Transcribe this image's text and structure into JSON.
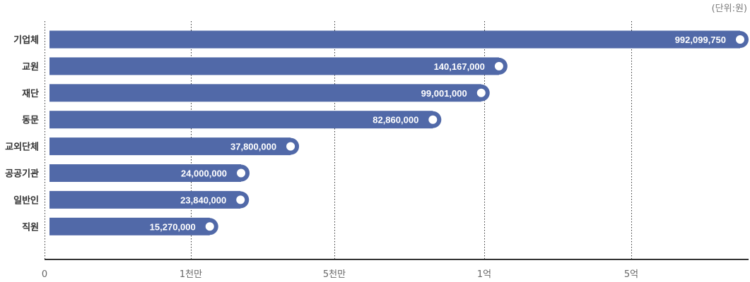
{
  "unit_note": "(단위:원)",
  "colors": {
    "bar": "#5169a8",
    "bar_outline": "#4a5f9c",
    "marker_fill": "#ffffff",
    "grid": "#333333",
    "axis": "#333333",
    "category_text": "#333333",
    "tick_text": "#666666",
    "value_text": "#ffffff"
  },
  "chart_data": {
    "type": "bar",
    "orientation": "horizontal",
    "categories": [
      "기업체",
      "교원",
      "재단",
      "동문",
      "교외단체",
      "공공기관",
      "일반인",
      "직원"
    ],
    "values": [
      992099750,
      140167000,
      99001000,
      82860000,
      37800000,
      24000000,
      23840000,
      15270000
    ],
    "value_labels": [
      "992,099,750",
      "140,167,000",
      "99,001,000",
      "82,860,000",
      "37,800,000",
      "24,000,000",
      "23,840,000",
      "15,270,000"
    ],
    "x_ticks": [
      {
        "value": 0,
        "label": "0"
      },
      {
        "value": 10000000,
        "label": "1천만"
      },
      {
        "value": 50000000,
        "label": "5천만"
      },
      {
        "value": 100000000,
        "label": "1억"
      },
      {
        "value": 500000000,
        "label": "5억"
      }
    ],
    "x_scale": "nonlinear",
    "grid": true,
    "legend": "none"
  }
}
